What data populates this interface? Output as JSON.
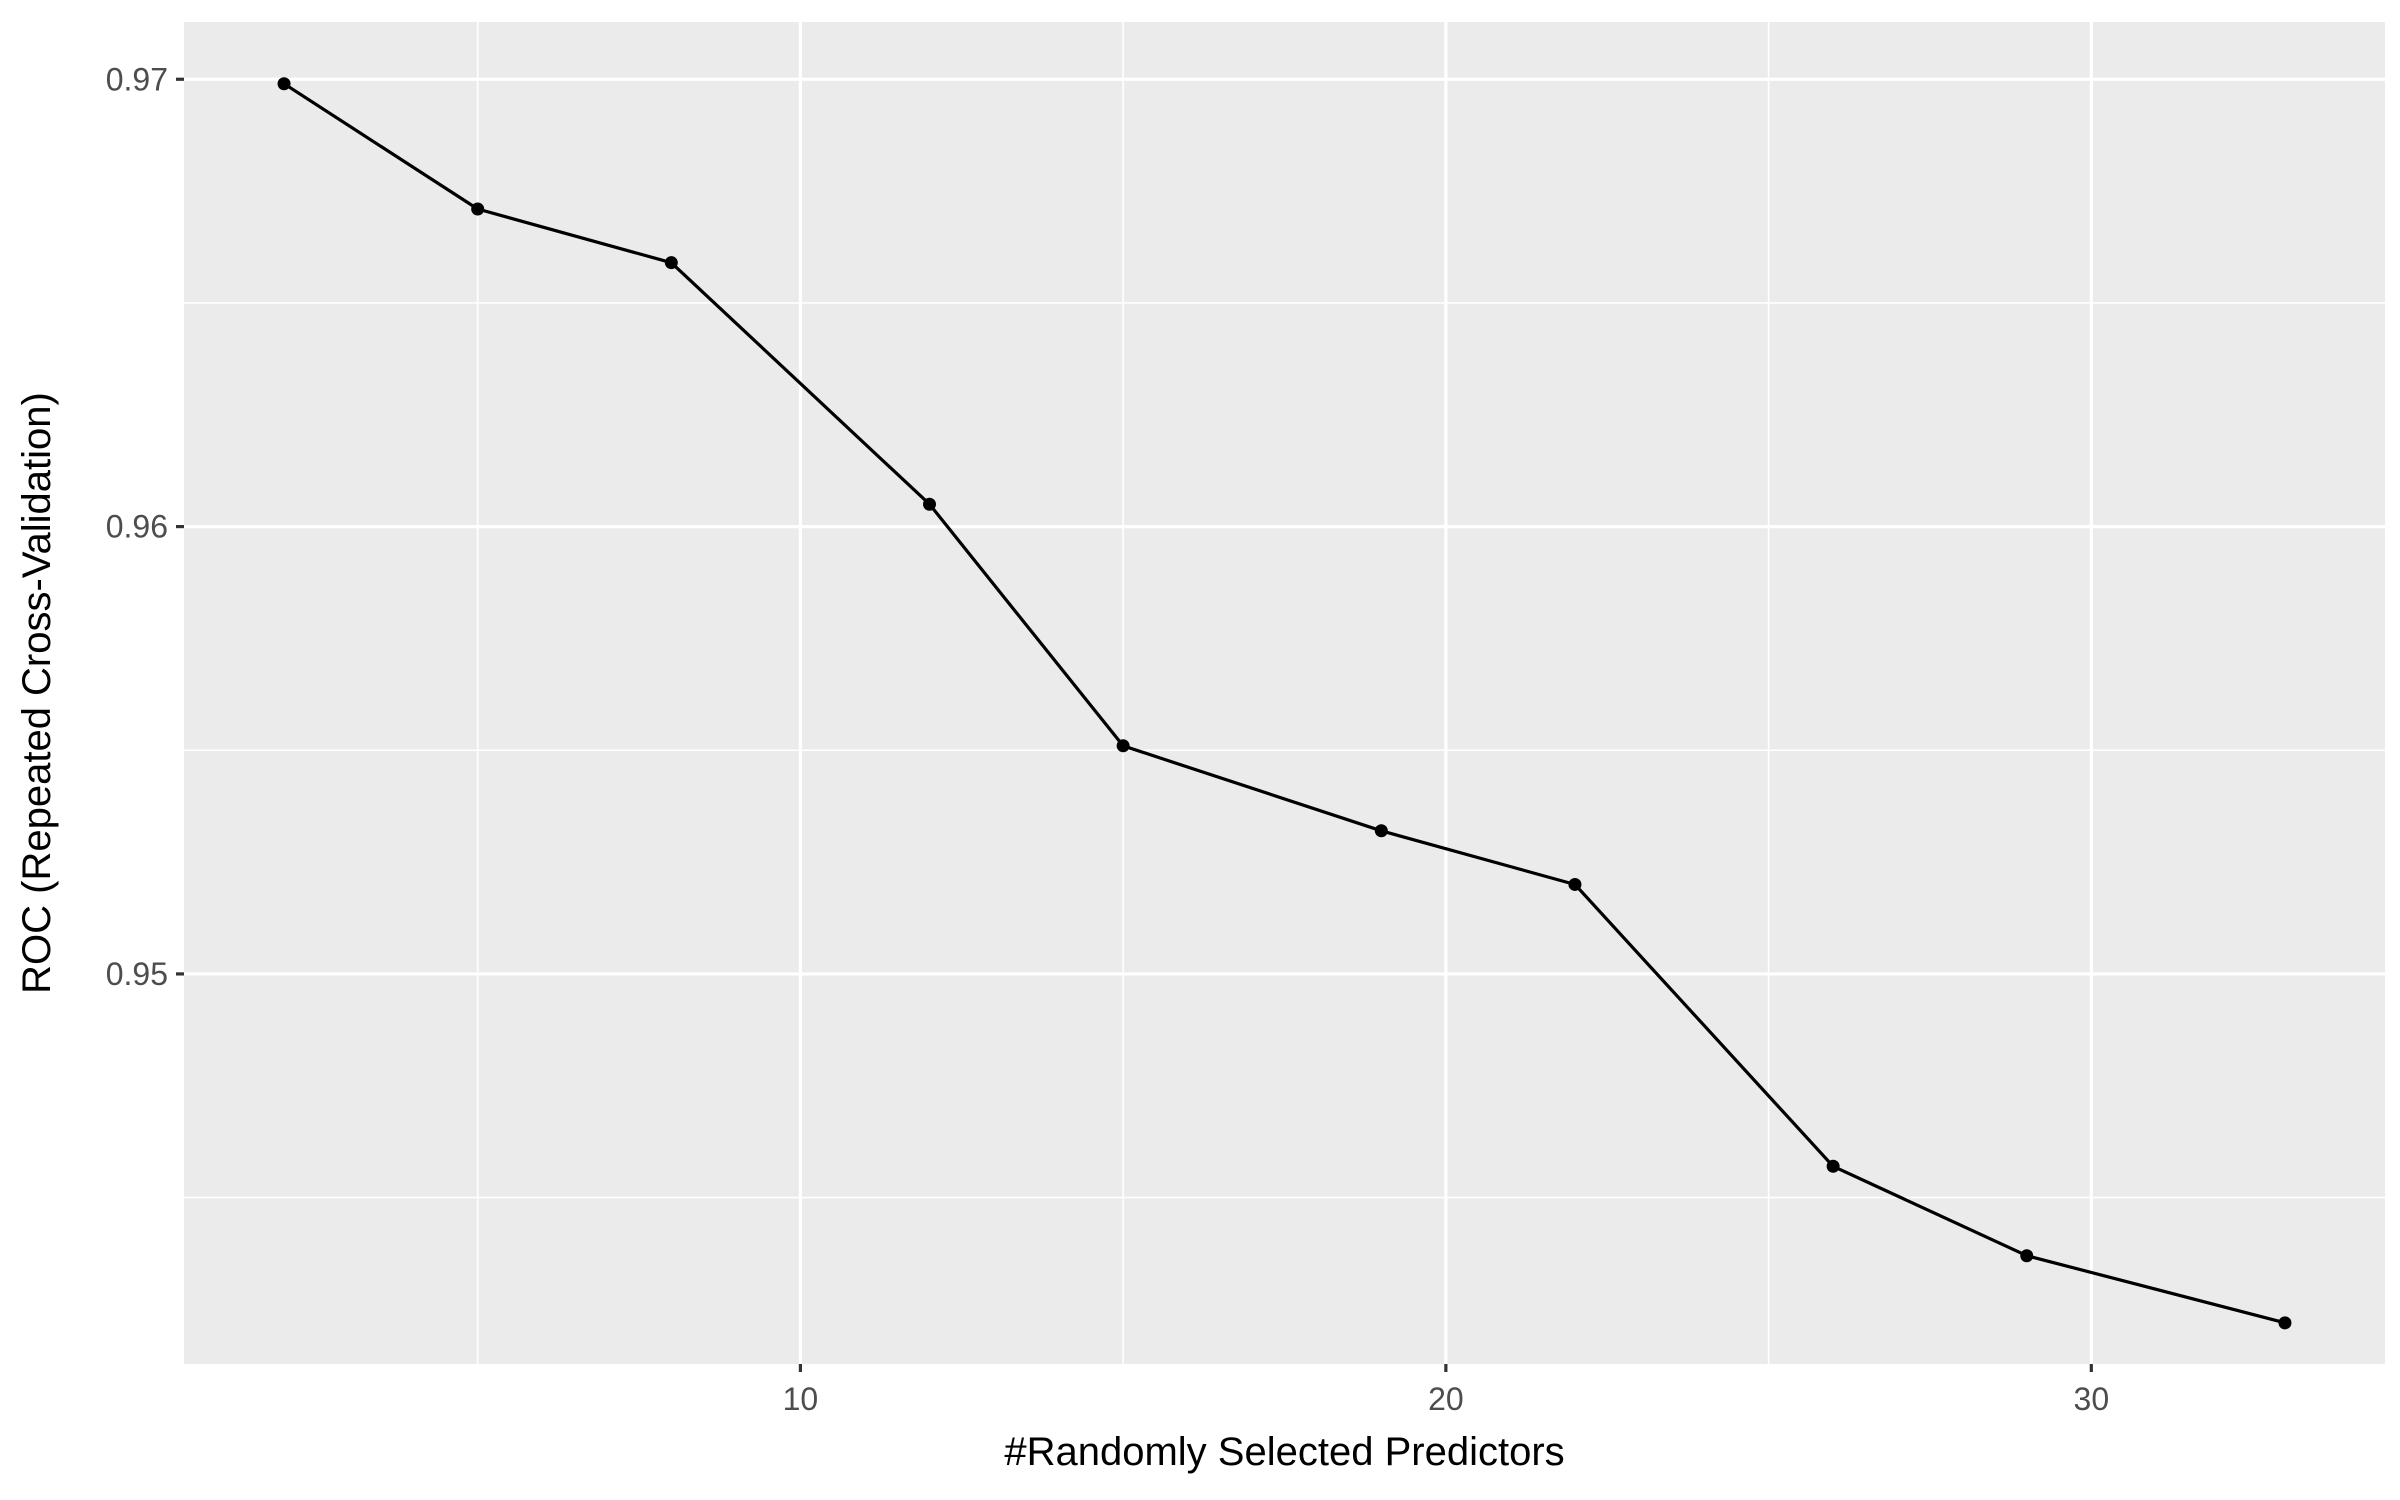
{
  "chart_data": {
    "type": "line",
    "title": "",
    "xlabel": "#Randomly Selected Predictors",
    "ylabel": "ROC (Repeated Cross-Validation)",
    "xlim": [
      0.45,
      34.55
    ],
    "ylim": [
      0.94128,
      0.97128
    ],
    "x_ticks": [
      10,
      20,
      30
    ],
    "x_minor_ticks": [
      5,
      15,
      25
    ],
    "y_ticks": [
      0.95,
      0.96,
      0.97
    ],
    "y_minor_ticks": [
      0.945,
      0.955,
      0.965
    ],
    "grid": true,
    "legend": "none",
    "colors": {
      "panel": "#EBEBEB",
      "grid": "#FFFFFF",
      "series": "#000000",
      "tick_label": "#4D4D4D"
    },
    "series": [
      {
        "x": [
          2,
          5,
          8,
          12,
          15,
          19,
          22,
          26,
          29,
          33
        ],
        "y": [
          0.9699,
          0.9671,
          0.9659,
          0.9605,
          0.9551,
          0.9532,
          0.952,
          0.9457,
          0.9437,
          0.9422
        ]
      }
    ]
  }
}
